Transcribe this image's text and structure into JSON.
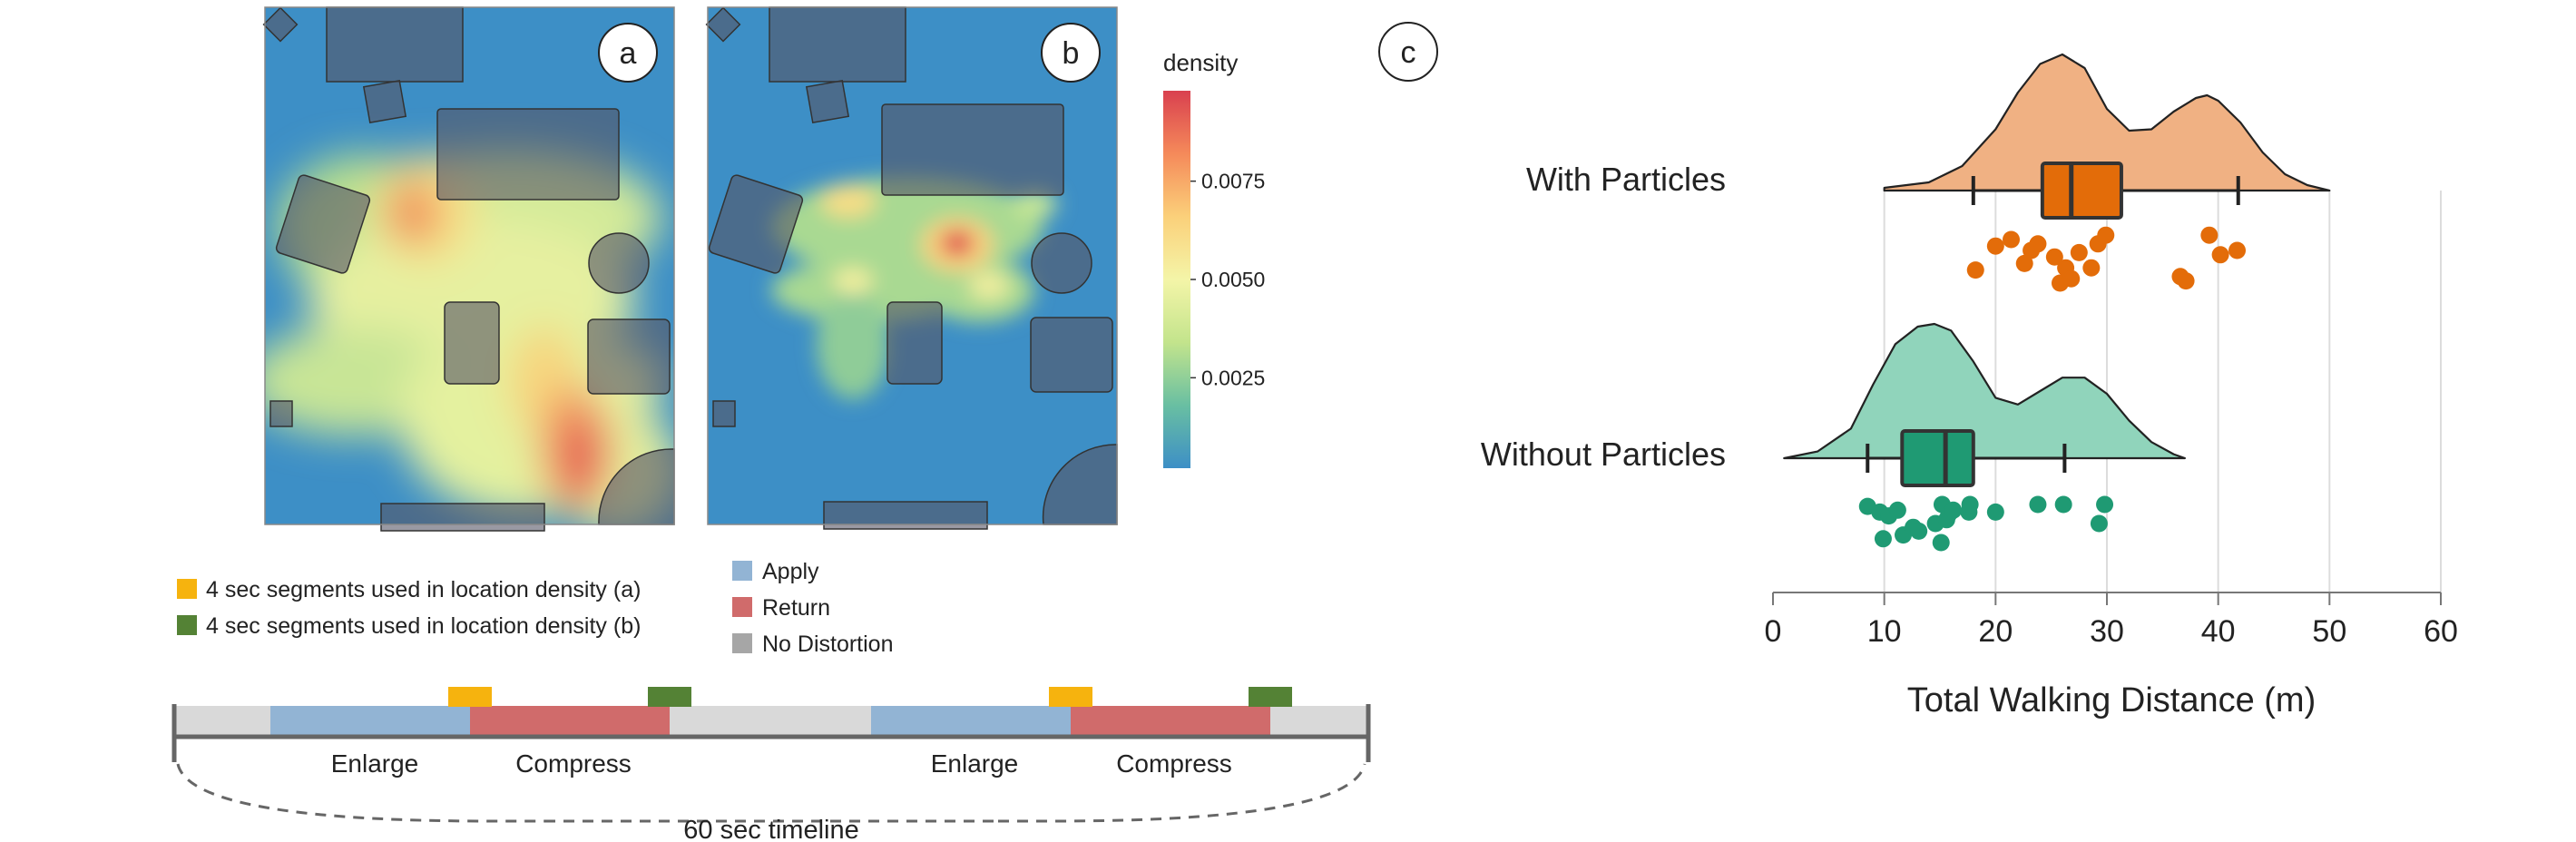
{
  "panels": {
    "a_label": "a",
    "b_label": "b",
    "c_label": "c"
  },
  "colorbar": {
    "title": "density",
    "ticks": [
      "0.0075",
      "0.0050",
      "0.0025"
    ],
    "tick_values": [
      0.0075,
      0.005,
      0.0025
    ],
    "range": [
      0.0002,
      0.0098
    ],
    "colors": [
      "#3d8fc6",
      "#69bfa2",
      "#c3e48c",
      "#f4f5a8",
      "#fbd07a",
      "#f58a5a",
      "#d9404f"
    ]
  },
  "legend": {
    "items": [
      {
        "label": "4 sec segments used in location density (a)",
        "color": "#f6b30e"
      },
      {
        "label": "4 sec segments used in location density (b)",
        "color": "#548235"
      },
      {
        "label": "Apply",
        "color": "#92b4d4"
      },
      {
        "label": "Return",
        "color": "#d06b6b"
      },
      {
        "label": "No Distortion",
        "color": "#a6a6a6"
      }
    ]
  },
  "timeline": {
    "label": "60 sec timeline",
    "segments": [
      {
        "label": "Enlarge"
      },
      {
        "label": "Compress"
      },
      {
        "label": "Enlarge"
      },
      {
        "label": "Compress"
      }
    ]
  },
  "chart_data": {
    "type": "raincloud",
    "xlabel": "Total Walking Distance (m)",
    "xlim": [
      0,
      60
    ],
    "xticks": [
      0,
      10,
      20,
      30,
      40,
      50,
      60
    ],
    "grid": true,
    "series": [
      {
        "name": "With Particles",
        "color": "#e36c09",
        "fill": "#f0b183",
        "box": {
          "whisker_low": 18,
          "q1": 24.2,
          "median": 26.8,
          "q3": 31.3,
          "whisker_high": 41.8
        },
        "density_range": [
          10,
          50
        ],
        "density": [
          [
            10,
            0.02
          ],
          [
            14,
            0.06
          ],
          [
            17,
            0.18
          ],
          [
            20,
            0.45
          ],
          [
            22,
            0.72
          ],
          [
            24,
            0.93
          ],
          [
            26,
            1.0
          ],
          [
            28,
            0.9
          ],
          [
            30,
            0.6
          ],
          [
            32,
            0.44
          ],
          [
            34,
            0.45
          ],
          [
            36,
            0.58
          ],
          [
            38,
            0.68
          ],
          [
            39,
            0.7
          ],
          [
            40,
            0.66
          ],
          [
            42,
            0.5
          ],
          [
            44,
            0.28
          ],
          [
            46,
            0.12
          ],
          [
            48,
            0.04
          ],
          [
            50,
            0.0
          ]
        ],
        "points": [
          [
            18.2,
            1.4
          ],
          [
            20,
            0.3
          ],
          [
            21.4,
            0
          ],
          [
            22.6,
            1.1
          ],
          [
            23.2,
            0.5
          ],
          [
            23.8,
            0.2
          ],
          [
            25.3,
            0.8
          ],
          [
            25.8,
            2.0
          ],
          [
            26.3,
            1.3
          ],
          [
            26.8,
            1.8
          ],
          [
            27.5,
            0.6
          ],
          [
            28.6,
            1.3
          ],
          [
            29.2,
            0.2
          ],
          [
            29.9,
            -0.2
          ],
          [
            36.6,
            1.7
          ],
          [
            37.1,
            1.9
          ],
          [
            39.2,
            -0.2
          ],
          [
            40.2,
            0.7
          ],
          [
            41.7,
            0.5
          ]
        ]
      },
      {
        "name": "Without Particles",
        "color": "#1f9a73",
        "fill": "#90d4bb",
        "box": {
          "whisker_low": 8.5,
          "q1": 11.6,
          "median": 15.5,
          "q3": 18.0,
          "whisker_high": 26.2
        },
        "density_range": [
          1,
          37
        ],
        "density": [
          [
            1,
            0.0
          ],
          [
            4,
            0.05
          ],
          [
            7,
            0.22
          ],
          [
            9,
            0.55
          ],
          [
            11,
            0.85
          ],
          [
            13,
            0.98
          ],
          [
            14.5,
            1.0
          ],
          [
            16,
            0.95
          ],
          [
            18,
            0.72
          ],
          [
            20,
            0.45
          ],
          [
            22,
            0.4
          ],
          [
            24,
            0.5
          ],
          [
            26,
            0.6
          ],
          [
            28,
            0.6
          ],
          [
            30,
            0.48
          ],
          [
            32,
            0.28
          ],
          [
            34,
            0.12
          ],
          [
            36,
            0.03
          ],
          [
            37,
            0.0
          ]
        ]
      }
    ]
  }
}
